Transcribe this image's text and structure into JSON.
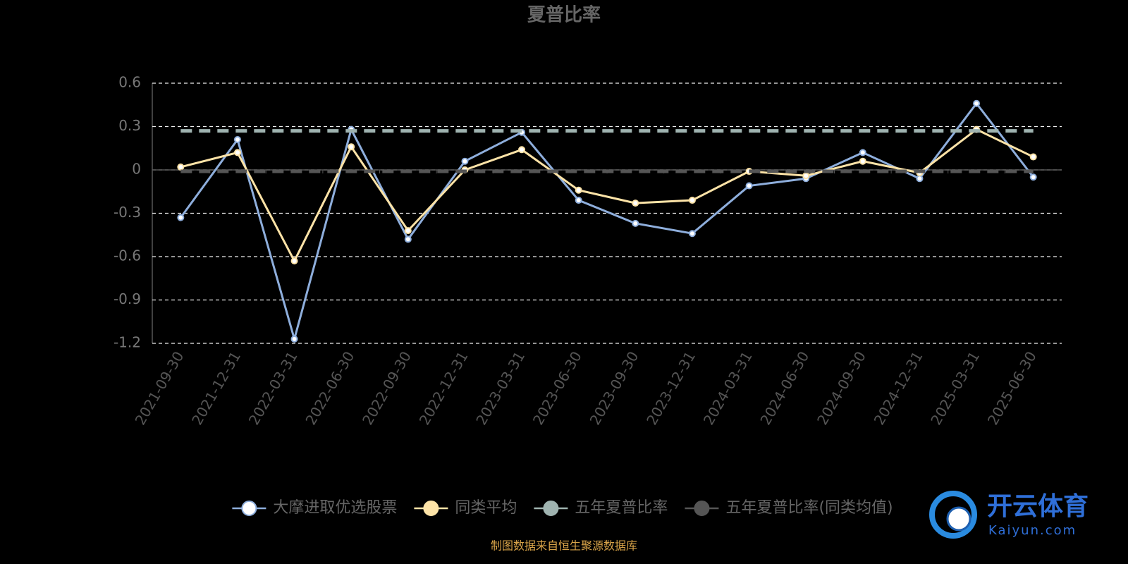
{
  "chart_data": {
    "type": "line",
    "title": "夏普比率",
    "categories": [
      "2021-09-30",
      "2021-12-31",
      "2022-03-31",
      "2022-06-30",
      "2022-09-30",
      "2022-12-31",
      "2023-03-31",
      "2023-06-30",
      "2023-09-30",
      "2023-12-31",
      "2024-03-31",
      "2024-06-30",
      "2024-09-30",
      "2024-12-31",
      "2025-03-31",
      "2025-06-30"
    ],
    "series": [
      {
        "name": "大摩进取优选股票",
        "color": "#8eaedc",
        "values": [
          -0.33,
          0.21,
          -1.17,
          0.28,
          -0.48,
          0.06,
          0.26,
          -0.21,
          -0.37,
          -0.44,
          -0.11,
          -0.06,
          0.12,
          -0.06,
          0.46,
          -0.05
        ]
      },
      {
        "name": "同类平均",
        "color": "#fde3a7",
        "values": [
          0.02,
          0.12,
          -0.63,
          0.16,
          -0.42,
          0.0,
          0.14,
          -0.14,
          -0.23,
          -0.21,
          -0.01,
          -0.04,
          0.06,
          -0.02,
          0.28,
          0.09
        ]
      },
      {
        "name": "五年夏普比率",
        "color": "#9fb3b0",
        "value": 0.27
      },
      {
        "name": "五年夏普比率(同类均值)",
        "color": "#555555",
        "value": -0.01
      }
    ],
    "ylim": [
      -1.2,
      0.6
    ],
    "yticks": [
      -1.2,
      -0.9,
      -0.6,
      -0.3,
      0,
      0.3,
      0.6
    ],
    "grid": true,
    "legend": "bottom",
    "source": "制图数据来自恒生聚源数据库"
  },
  "watermark": {
    "brand": "开云体育",
    "site": "Kaiyun.com"
  }
}
